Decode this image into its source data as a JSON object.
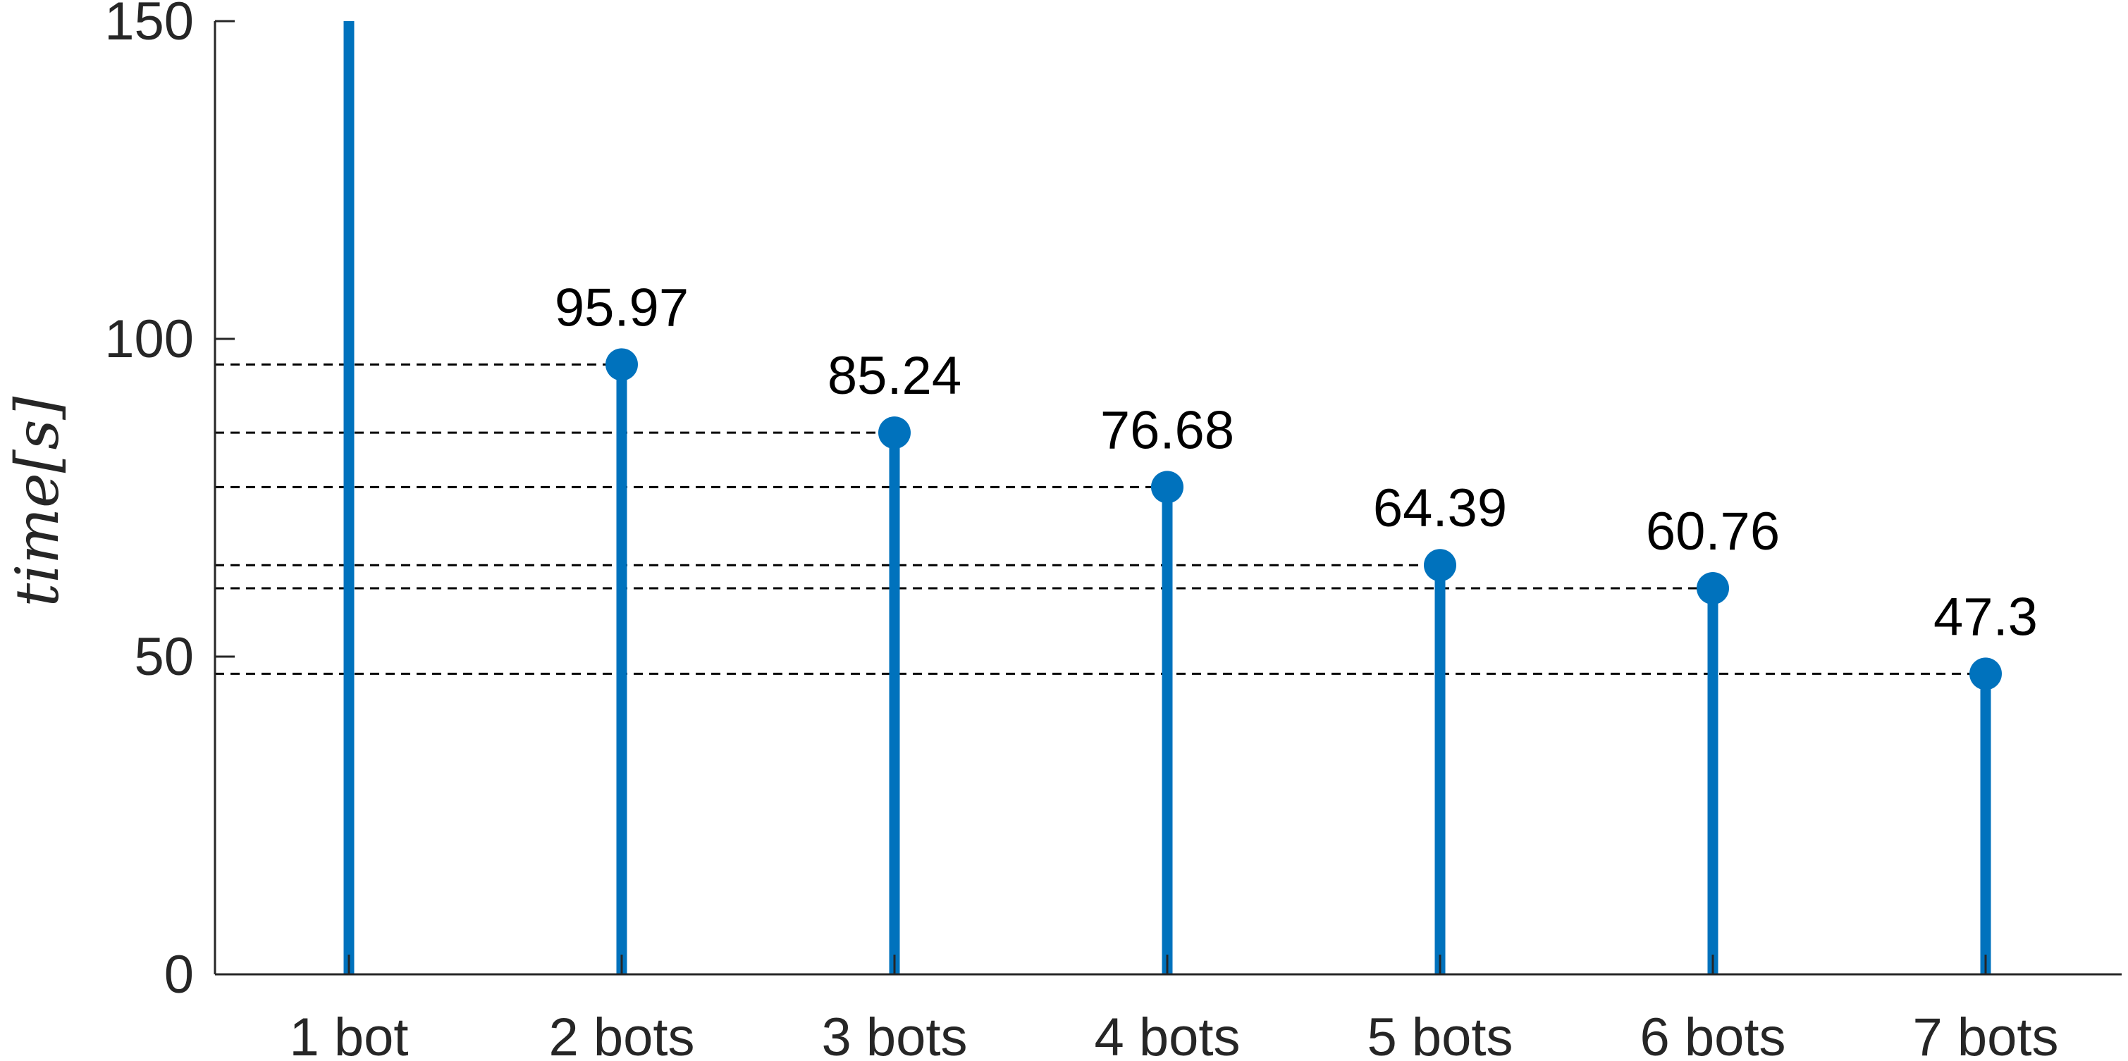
{
  "chart_data": {
    "type": "stem",
    "categories": [
      "1 bot",
      "2 bots",
      "3 bots",
      "4 bots",
      "5 bots",
      "6 bots",
      "7 bots"
    ],
    "values": [
      150,
      95.97,
      85.24,
      76.68,
      64.39,
      60.76,
      47.3
    ],
    "data_labels": [
      "",
      "95.97",
      "85.24",
      "76.68",
      "64.39",
      "60.76",
      "47.3"
    ],
    "ylabel": "time[s]",
    "ylim": [
      0,
      150
    ],
    "yticks": [
      "0",
      "50",
      "100",
      "150"
    ],
    "ytick_values": [
      0,
      50,
      100,
      150
    ],
    "reference_lines": "dashed horizontal line from y-axis to each labeled marker",
    "grid": false,
    "colors": {
      "stem": "#0072BD",
      "reference": "#000000",
      "axis": "#262626"
    }
  }
}
